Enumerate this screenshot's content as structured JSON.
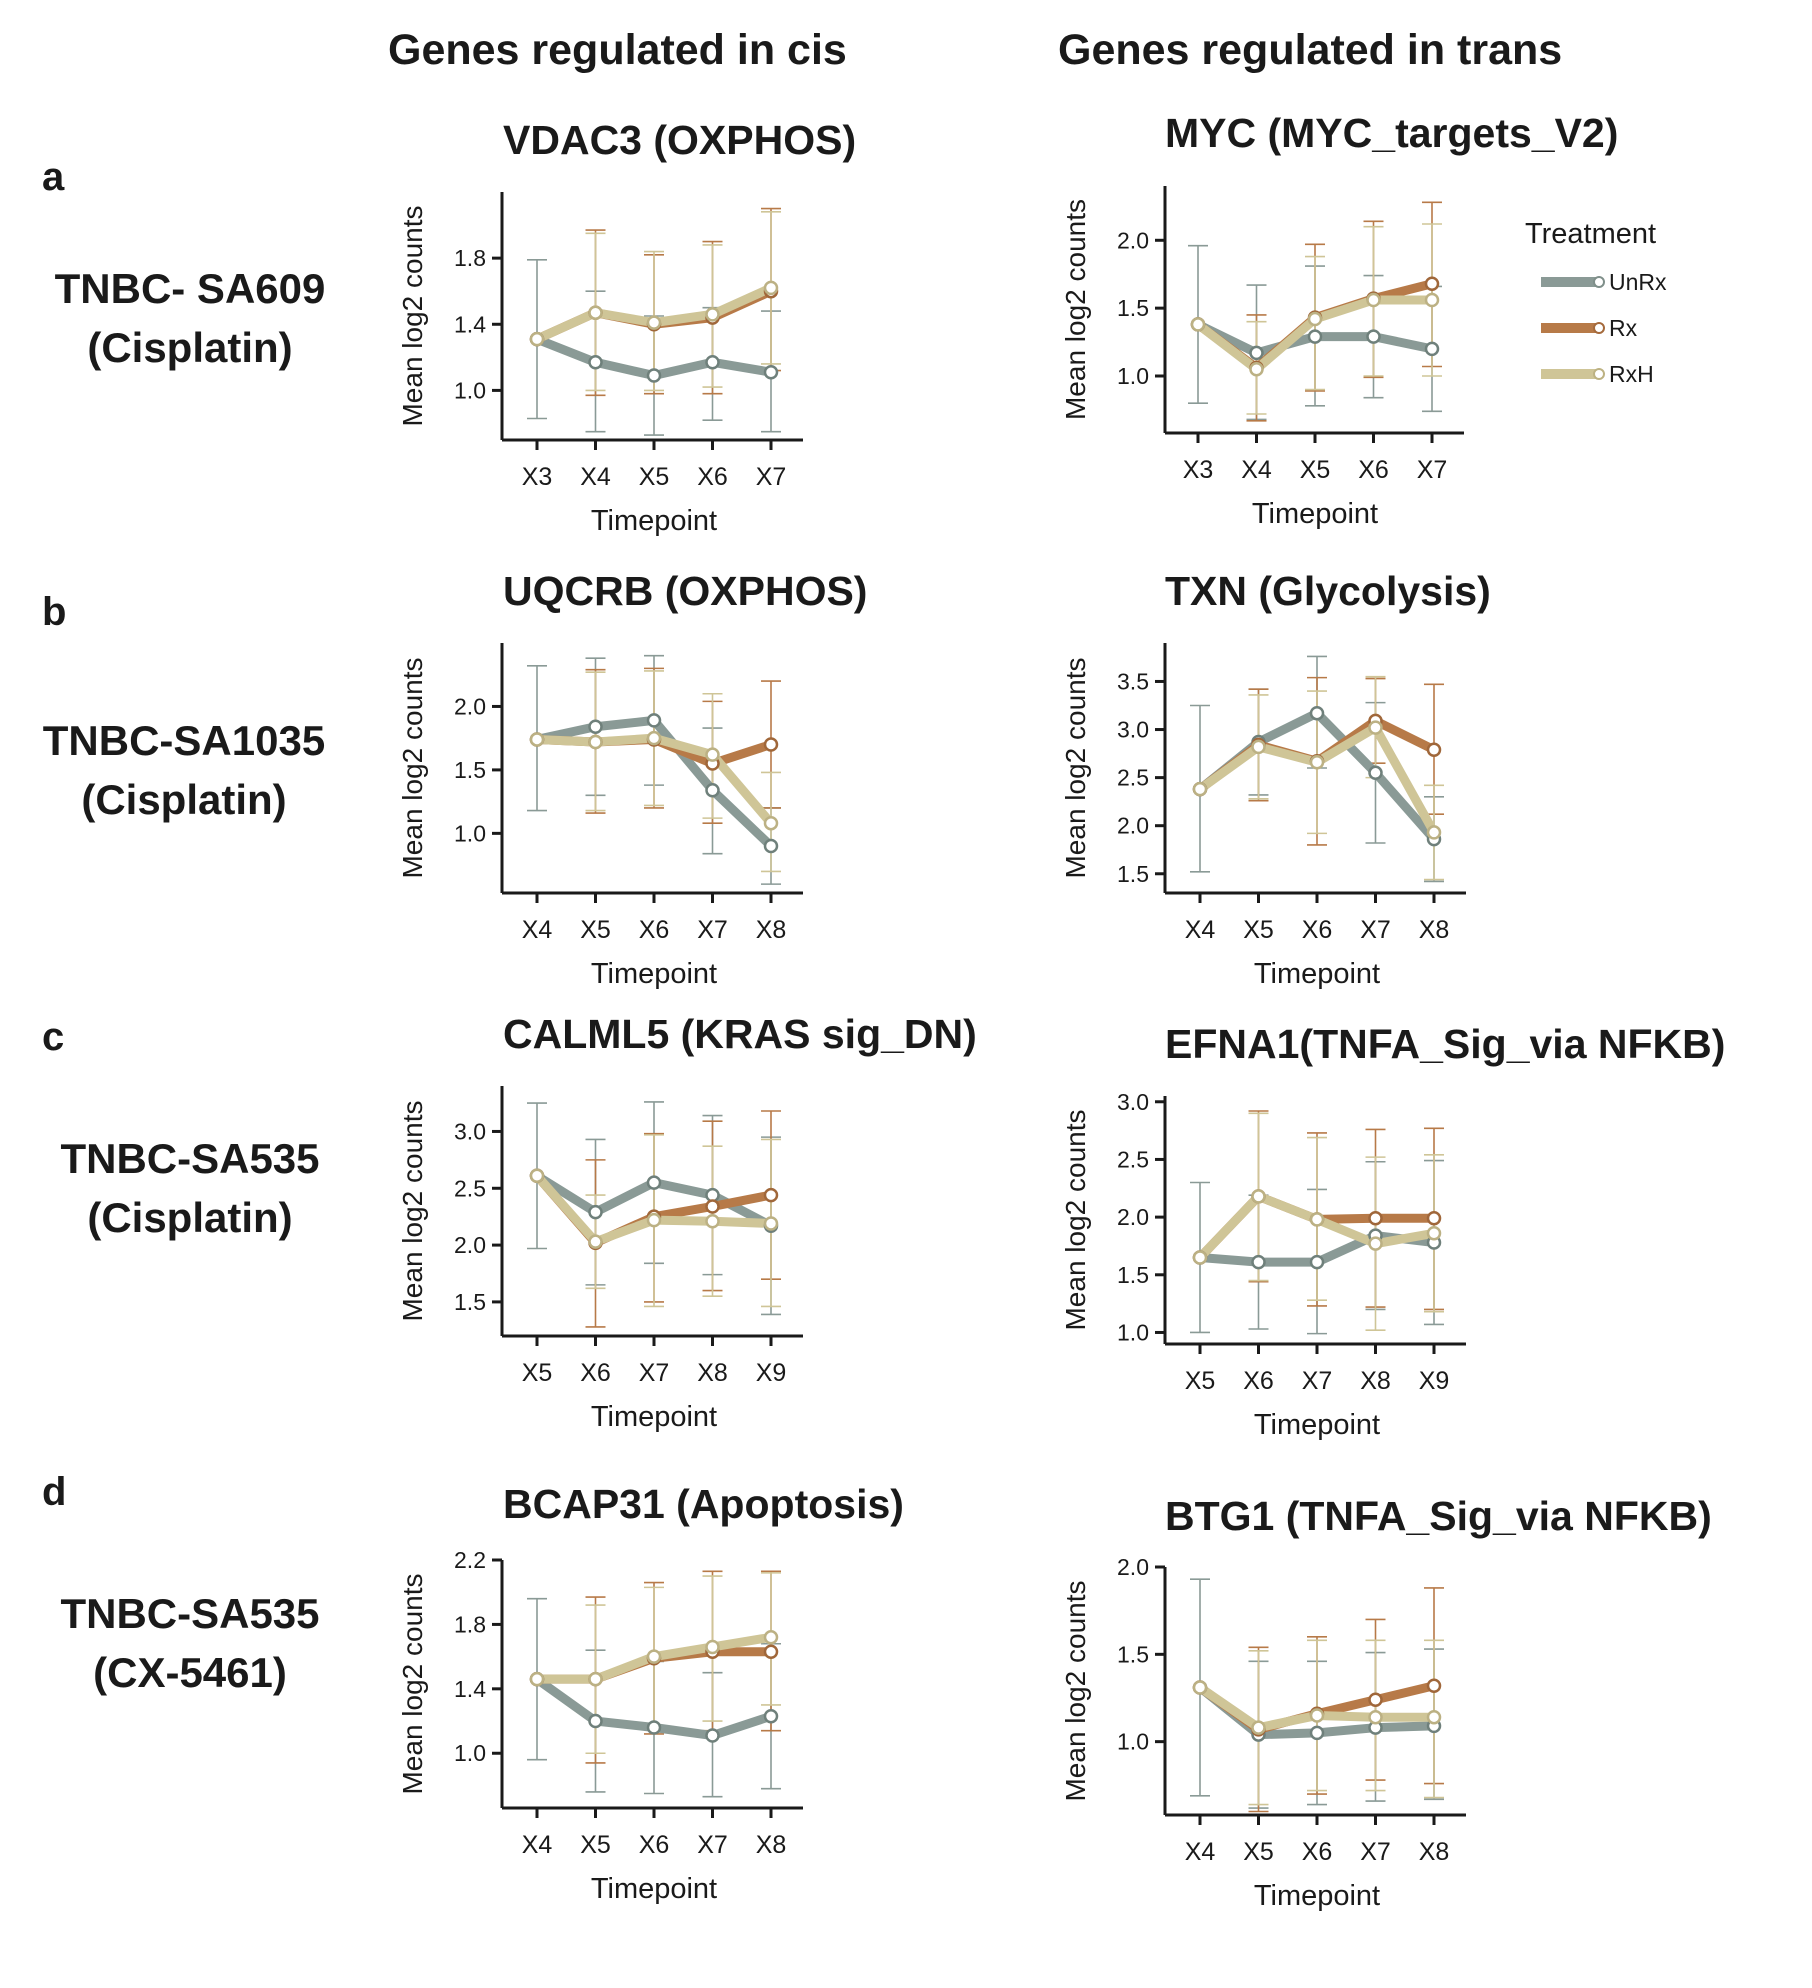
{
  "column_headers": [
    "Genes regulated in cis",
    "Genes regulated in trans"
  ],
  "rows": [
    {
      "letter": "a",
      "label_line1": "TNBC- SA609",
      "label_line2": "(Cisplatin)"
    },
    {
      "letter": "b",
      "label_line1": "TNBC-SA1035",
      "label_line2": "(Cisplatin)"
    },
    {
      "letter": "c",
      "label_line1": "TNBC-SA535",
      "label_line2": "(Cisplatin)"
    },
    {
      "letter": "d",
      "label_line1": "TNBC-SA535",
      "label_line2": "(CX-5461)"
    }
  ],
  "legend": {
    "title": "Treatment",
    "items": [
      {
        "label": "UnRx",
        "color": "#8a9a96"
      },
      {
        "label": "Rx",
        "color": "#b77a48"
      },
      {
        "label": "RxH",
        "color": "#cfc597"
      }
    ]
  },
  "colors": {
    "UnRx": "#8a9a96",
    "Rx": "#b77a48",
    "RxH": "#cfc597"
  },
  "chart_data": [
    {
      "type": "line",
      "title": "VDAC3  (OXPHOS)",
      "xlabel": "Timepoint",
      "ylabel": "Mean log2 counts",
      "categories": [
        "X3",
        "X4",
        "X5",
        "X6",
        "X7"
      ],
      "yticks": [
        1.0,
        1.4,
        1.8
      ],
      "ytick_labels": [
        "1.0",
        "1.4",
        "1.8"
      ],
      "ylim": [
        0.7,
        2.2
      ],
      "series": [
        {
          "name": "UnRx",
          "values": [
            1.31,
            1.17,
            1.09,
            1.17,
            1.11
          ],
          "err_low": [
            0.83,
            0.75,
            0.73,
            0.82,
            0.75
          ],
          "err_high": [
            1.79,
            1.6,
            1.45,
            1.5,
            1.48
          ]
        },
        {
          "name": "Rx",
          "values": [
            1.31,
            1.47,
            1.4,
            1.44,
            1.6
          ],
          "err_low": [
            1.31,
            0.97,
            0.98,
            0.98,
            1.12
          ],
          "err_high": [
            1.31,
            1.97,
            1.82,
            1.9,
            2.1
          ]
        },
        {
          "name": "RxH",
          "values": [
            1.31,
            1.47,
            1.41,
            1.46,
            1.62
          ],
          "err_low": [
            1.31,
            1.0,
            1.0,
            1.02,
            1.16
          ],
          "err_high": [
            1.31,
            1.95,
            1.84,
            1.88,
            2.08
          ]
        }
      ]
    },
    {
      "type": "line",
      "title": "MYC  (MYC_targets_V2)",
      "xlabel": "Timepoint",
      "ylabel": "Mean log2 counts",
      "categories": [
        "X3",
        "X4",
        "X5",
        "X6",
        "X7"
      ],
      "yticks": [
        1.0,
        1.5,
        2.0
      ],
      "ytick_labels": [
        "1.0",
        "1.5",
        "2.0"
      ],
      "ylim": [
        0.58,
        2.4
      ],
      "series": [
        {
          "name": "UnRx",
          "values": [
            1.38,
            1.17,
            1.29,
            1.29,
            1.2
          ],
          "err_low": [
            0.8,
            0.68,
            0.78,
            0.84,
            0.74
          ],
          "err_high": [
            1.96,
            1.67,
            1.81,
            1.74,
            1.66
          ]
        },
        {
          "name": "Rx",
          "values": [
            1.38,
            1.06,
            1.43,
            1.57,
            1.68
          ],
          "err_low": [
            1.38,
            0.67,
            0.89,
            0.99,
            1.07
          ],
          "err_high": [
            1.38,
            1.45,
            1.97,
            2.14,
            2.28
          ]
        },
        {
          "name": "RxH",
          "values": [
            1.38,
            1.05,
            1.42,
            1.56,
            1.56
          ],
          "err_low": [
            1.38,
            0.72,
            0.9,
            1.0,
            1.0
          ],
          "err_high": [
            1.38,
            1.4,
            1.88,
            2.1,
            2.12
          ]
        }
      ]
    },
    {
      "type": "line",
      "title": "UQCRB  (OXPHOS)",
      "xlabel": "Timepoint",
      "ylabel": "Mean log2 counts",
      "categories": [
        "X4",
        "X5",
        "X6",
        "X7",
        "X8"
      ],
      "yticks": [
        1.0,
        1.5,
        2.0
      ],
      "ytick_labels": [
        "1.0",
        "1.5",
        "2.0"
      ],
      "ylim": [
        0.53,
        2.5
      ],
      "series": [
        {
          "name": "UnRx",
          "values": [
            1.74,
            1.84,
            1.89,
            1.34,
            0.9
          ],
          "err_low": [
            1.18,
            1.3,
            1.38,
            0.84,
            0.6
          ],
          "err_high": [
            2.32,
            2.38,
            2.4,
            1.83,
            1.2
          ]
        },
        {
          "name": "Rx",
          "values": [
            1.74,
            1.72,
            1.74,
            1.55,
            1.7
          ],
          "err_low": [
            1.74,
            1.16,
            1.2,
            1.08,
            1.2
          ],
          "err_high": [
            1.74,
            2.29,
            2.3,
            2.04,
            2.2
          ]
        },
        {
          "name": "RxH",
          "values": [
            1.74,
            1.72,
            1.75,
            1.62,
            1.08
          ],
          "err_low": [
            1.74,
            1.18,
            1.22,
            1.12,
            0.7
          ],
          "err_high": [
            1.74,
            2.27,
            2.28,
            2.1,
            1.48
          ]
        }
      ]
    },
    {
      "type": "line",
      "title": "TXN  (Glycolysis)",
      "xlabel": "Timepoint",
      "ylabel": "Mean log2 counts",
      "categories": [
        "X4",
        "X5",
        "X6",
        "X7",
        "X8"
      ],
      "yticks": [
        1.5,
        2.0,
        2.5,
        3.0,
        3.5
      ],
      "ytick_labels": [
        "1.5",
        "2.0",
        "2.5",
        "3.0",
        "3.5"
      ],
      "ylim": [
        1.3,
        3.9
      ],
      "series": [
        {
          "name": "UnRx",
          "values": [
            2.38,
            2.87,
            3.17,
            2.55,
            1.86
          ],
          "err_low": [
            1.52,
            2.32,
            2.6,
            1.82,
            1.42
          ],
          "err_high": [
            3.25,
            3.42,
            3.76,
            3.28,
            2.3
          ]
        },
        {
          "name": "Rx",
          "values": [
            2.38,
            2.84,
            2.67,
            3.09,
            2.79
          ],
          "err_low": [
            2.38,
            2.26,
            1.8,
            2.65,
            2.12
          ],
          "err_high": [
            2.38,
            3.42,
            3.54,
            3.53,
            3.47
          ]
        },
        {
          "name": "RxH",
          "values": [
            2.38,
            2.82,
            2.66,
            3.02,
            1.93
          ],
          "err_low": [
            2.38,
            2.28,
            1.92,
            2.5,
            1.44
          ],
          "err_high": [
            2.38,
            3.36,
            3.4,
            3.55,
            2.42
          ]
        }
      ]
    },
    {
      "type": "line",
      "title": "CALML5 (KRAS sig_DN)",
      "xlabel": "Timepoint",
      "ylabel": "Mean log2 counts",
      "categories": [
        "X5",
        "X6",
        "X7",
        "X8",
        "X9"
      ],
      "yticks": [
        1.5,
        2.0,
        2.5,
        3.0
      ],
      "ytick_labels": [
        "1.5",
        "2.0",
        "2.5",
        "3.0"
      ],
      "ylim": [
        1.2,
        3.4
      ],
      "series": [
        {
          "name": "UnRx",
          "values": [
            2.61,
            2.29,
            2.55,
            2.44,
            2.17
          ],
          "err_low": [
            1.97,
            1.65,
            1.84,
            1.74,
            1.39
          ],
          "err_high": [
            3.25,
            2.93,
            3.26,
            3.14,
            2.95
          ]
        },
        {
          "name": "Rx",
          "values": [
            2.61,
            2.02,
            2.25,
            2.34,
            2.44
          ],
          "err_low": [
            2.61,
            1.28,
            1.5,
            1.6,
            1.7
          ],
          "err_high": [
            2.61,
            2.75,
            2.98,
            3.09,
            3.18
          ]
        },
        {
          "name": "RxH",
          "values": [
            2.61,
            2.03,
            2.22,
            2.21,
            2.19
          ],
          "err_low": [
            2.61,
            1.62,
            1.46,
            1.55,
            1.46
          ],
          "err_high": [
            2.61,
            2.44,
            2.97,
            2.87,
            2.93
          ]
        }
      ]
    },
    {
      "type": "line",
      "title": "EFNA1(TNFA_Sig_via NFKB)",
      "xlabel": "Timepoint",
      "ylabel": "Mean log2 counts",
      "categories": [
        "X5",
        "X6",
        "X7",
        "X8",
        "X9"
      ],
      "yticks": [
        1.0,
        1.5,
        2.0,
        2.5,
        3.0
      ],
      "ytick_labels": [
        "1.0",
        "1.5",
        "2.0",
        "2.5",
        "3.0"
      ],
      "ylim": [
        0.9,
        3.05
      ],
      "series": [
        {
          "name": "UnRx",
          "values": [
            1.65,
            1.61,
            1.61,
            1.84,
            1.78
          ],
          "err_low": [
            1.0,
            1.03,
            0.99,
            1.2,
            1.07
          ],
          "err_high": [
            2.3,
            2.19,
            2.24,
            2.48,
            2.49
          ]
        },
        {
          "name": "Rx",
          "values": [
            1.65,
            2.18,
            1.98,
            1.99,
            1.99
          ],
          "err_low": [
            1.65,
            1.44,
            1.23,
            1.22,
            1.2
          ],
          "err_high": [
            1.65,
            2.92,
            2.73,
            2.76,
            2.77
          ]
        },
        {
          "name": "RxH",
          "values": [
            1.65,
            2.18,
            1.98,
            1.77,
            1.86
          ],
          "err_low": [
            1.65,
            1.45,
            1.28,
            1.02,
            1.18
          ],
          "err_high": [
            1.65,
            2.9,
            2.69,
            2.52,
            2.54
          ]
        }
      ]
    },
    {
      "type": "line",
      "title": "BCAP31  (Apoptosis)",
      "xlabel": "Timepoint",
      "ylabel": "Mean log2 counts",
      "categories": [
        "X4",
        "X5",
        "X6",
        "X7",
        "X8"
      ],
      "yticks": [
        1.0,
        1.4,
        1.8,
        2.2
      ],
      "ytick_labels": [
        "1.0",
        "1.4",
        "1.8",
        "2.2"
      ],
      "ylim": [
        0.66,
        2.2
      ],
      "series": [
        {
          "name": "UnRx",
          "values": [
            1.46,
            1.2,
            1.16,
            1.11,
            1.23
          ],
          "err_low": [
            0.96,
            0.76,
            0.75,
            0.73,
            0.78
          ],
          "err_high": [
            1.96,
            1.64,
            1.57,
            1.5,
            1.68
          ]
        },
        {
          "name": "Rx",
          "values": [
            1.46,
            1.46,
            1.59,
            1.63,
            1.63
          ],
          "err_low": [
            1.46,
            0.94,
            1.12,
            1.14,
            1.14
          ],
          "err_high": [
            1.46,
            1.97,
            2.06,
            2.13,
            2.13
          ]
        },
        {
          "name": "RxH",
          "values": [
            1.46,
            1.46,
            1.6,
            1.66,
            1.72
          ],
          "err_low": [
            1.46,
            1.0,
            1.16,
            1.2,
            1.3
          ],
          "err_high": [
            1.46,
            1.92,
            2.03,
            2.1,
            2.12
          ]
        }
      ]
    },
    {
      "type": "line",
      "title": "BTG1 (TNFA_Sig_via NFKB)",
      "xlabel": "Timepoint",
      "ylabel": "Mean log2 counts",
      "categories": [
        "X4",
        "X5",
        "X6",
        "X7",
        "X8"
      ],
      "yticks": [
        1.0,
        1.5,
        2.0
      ],
      "ytick_labels": [
        "1.0",
        "1.5",
        "2.0"
      ],
      "ylim": [
        0.58,
        2.0
      ],
      "series": [
        {
          "name": "UnRx",
          "values": [
            1.31,
            1.04,
            1.05,
            1.08,
            1.09
          ],
          "err_low": [
            0.69,
            0.62,
            0.64,
            0.66,
            0.67
          ],
          "err_high": [
            1.93,
            1.46,
            1.46,
            1.51,
            1.53
          ]
        },
        {
          "name": "Rx",
          "values": [
            1.31,
            1.07,
            1.16,
            1.24,
            1.32
          ],
          "err_low": [
            1.31,
            0.6,
            0.7,
            0.78,
            0.76
          ],
          "err_high": [
            1.31,
            1.54,
            1.6,
            1.7,
            1.88
          ]
        },
        {
          "name": "RxH",
          "values": [
            1.31,
            1.08,
            1.15,
            1.14,
            1.14
          ],
          "err_low": [
            1.31,
            0.64,
            0.72,
            0.72,
            0.68
          ],
          "err_high": [
            1.31,
            1.52,
            1.58,
            1.58,
            1.58
          ]
        }
      ]
    }
  ]
}
